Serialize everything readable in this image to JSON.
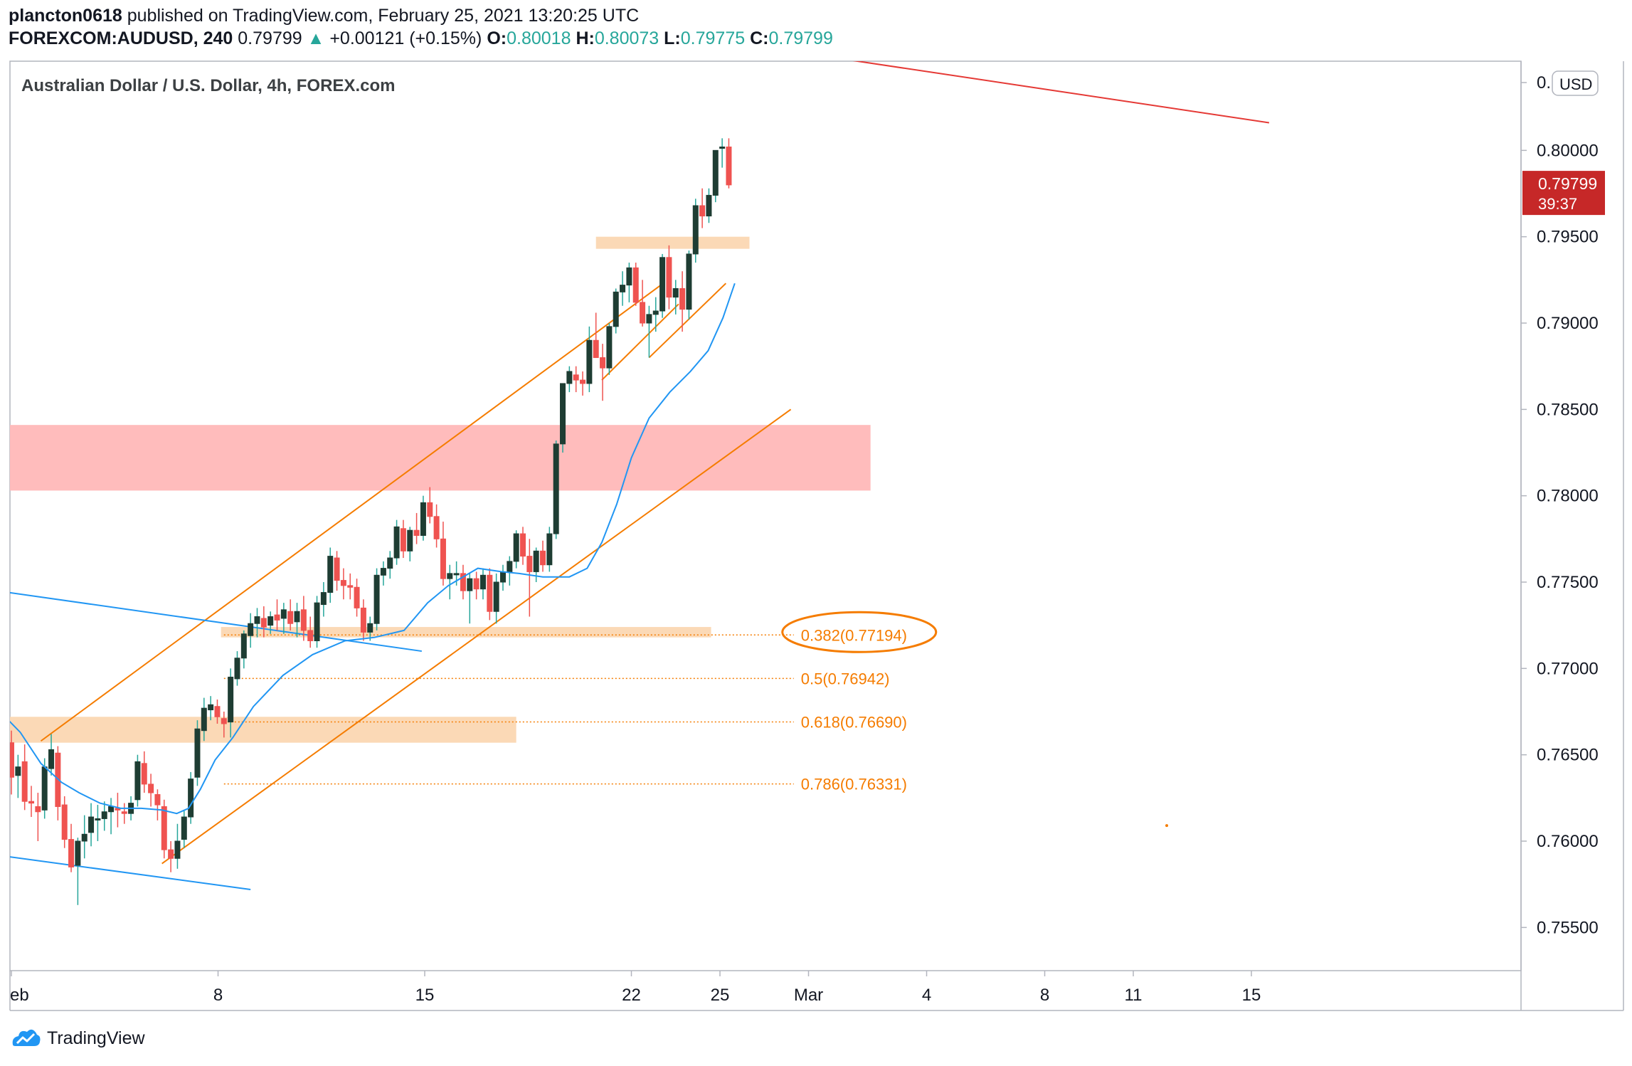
{
  "header": {
    "publisher": "plancton0618",
    "published_line": "published on TradingView.com, February 25, 2021 13:20:25 UTC",
    "symbol": "FOREXCOM:AUDUSD, 240",
    "last_price": "0.79799",
    "change_arrow": "▲",
    "change": "+0.00121 (+0.15%)",
    "open_label": "O:",
    "open": "0.80018",
    "high_label": "H:",
    "high": "0.80073",
    "low_label": "L:",
    "low": "0.79775",
    "close_label": "C:",
    "close": "0.79799"
  },
  "colors": {
    "up": "#26a69a",
    "down": "#ef5350",
    "candle_body": "#1e3d33",
    "orange": "#f57c00",
    "ma_line": "#2196f3",
    "resistance_zone": "#ffbcbc",
    "support_zone": "#fbd9b6",
    "price_label_bg": "#c62828"
  },
  "footer": {
    "brand": "TradingView"
  },
  "chart_data": {
    "type": "candlestick",
    "title": "Australian Dollar / U.S. Dollar, 4h, FOREX.com",
    "currency_label": "USD",
    "y_range": [
      0.7525,
      0.805
    ],
    "y_ticks": [
      "0.75500",
      "0.76000",
      "0.76500",
      "0.77000",
      "0.77500",
      "0.78000",
      "0.78500",
      "0.79000",
      "0.79500",
      "0.80000"
    ],
    "y_tick_partial": "0.",
    "x_ticks": [
      {
        "label": "eb",
        "day": 1
      },
      {
        "label": "8",
        "day": 8
      },
      {
        "label": "15",
        "day": 15
      },
      {
        "label": "22",
        "day": 22
      },
      {
        "label": "25",
        "day": 25
      },
      {
        "label": "Mar",
        "day": 28
      },
      {
        "label": "4",
        "day": 32
      },
      {
        "label": "8",
        "day": 36
      },
      {
        "label": "11",
        "day": 39
      },
      {
        "label": "15",
        "day": 43
      }
    ],
    "current_price": {
      "value": "0.79799",
      "countdown": "39:37"
    },
    "fibonacci": [
      {
        "level": "0.382",
        "price": 0.77194,
        "label": "0.382(0.77194)",
        "highlighted": true
      },
      {
        "level": "0.5",
        "price": 0.76942,
        "label": "0.5(0.76942)"
      },
      {
        "level": "0.618",
        "price": 0.7669,
        "label": "0.618(0.76690)"
      },
      {
        "level": "0.786",
        "price": 0.76331,
        "label": "0.786(0.76331)"
      }
    ],
    "zones": [
      {
        "name": "resistance",
        "from_day": 0.9,
        "to_day": 30.1,
        "low": 0.7803,
        "high": 0.7841
      },
      {
        "name": "support-low",
        "from_day": 0.9,
        "to_day": 18.1,
        "low": 0.7657,
        "high": 0.7672
      },
      {
        "name": "support-mid",
        "from_day": 8.1,
        "to_day": 24.7,
        "low": 0.7718,
        "high": 0.7724
      },
      {
        "name": "breakout",
        "from_day": 20.8,
        "to_day": 26.0,
        "low": 0.7943,
        "high": 0.795
      }
    ],
    "trendlines": [
      {
        "name": "long-term-resistance",
        "color": "red",
        "points": [
          [
            8.8,
            0.8105
          ],
          [
            43.6,
            0.8016
          ]
        ]
      },
      {
        "name": "channel-upper",
        "color": "orange",
        "points": [
          [
            2.0,
            0.7658
          ],
          [
            23.0,
            0.7922
          ]
        ]
      },
      {
        "name": "channel-lower",
        "color": "orange",
        "points": [
          [
            6.1,
            0.7587
          ],
          [
            27.4,
            0.785
          ]
        ]
      },
      {
        "name": "inner-channel-upper",
        "color": "orange",
        "points": [
          [
            21.0,
            0.7867
          ],
          [
            23.6,
            0.7911
          ]
        ]
      },
      {
        "name": "inner-channel-lower",
        "color": "orange",
        "points": [
          [
            22.6,
            0.788
          ],
          [
            25.2,
            0.7923
          ]
        ]
      },
      {
        "name": "descending-upper",
        "color": "blue",
        "points": [
          [
            0.9,
            0.7744
          ],
          [
            14.9,
            0.771
          ]
        ]
      },
      {
        "name": "descending-lower",
        "color": "blue",
        "points": [
          [
            0.9,
            0.7591
          ],
          [
            9.1,
            0.7572
          ]
        ]
      }
    ],
    "candles": [
      [
        0.7657,
        0.7664,
        0.7627,
        0.7637
      ],
      [
        0.7638,
        0.765,
        0.7625,
        0.7643
      ],
      [
        0.7646,
        0.7656,
        0.7618,
        0.7623
      ],
      [
        0.7623,
        0.7632,
        0.7614,
        0.7622
      ],
      [
        0.762,
        0.7628,
        0.76,
        0.7617
      ],
      [
        0.7618,
        0.7648,
        0.7613,
        0.7643
      ],
      [
        0.7642,
        0.7662,
        0.7638,
        0.7653
      ],
      [
        0.7651,
        0.7655,
        0.7612,
        0.762
      ],
      [
        0.7621,
        0.7626,
        0.7596,
        0.7601
      ],
      [
        0.7601,
        0.761,
        0.7582,
        0.7585
      ],
      [
        0.7586,
        0.7602,
        0.7563,
        0.76
      ],
      [
        0.76,
        0.7615,
        0.759,
        0.7604
      ],
      [
        0.7605,
        0.7622,
        0.7597,
        0.7614
      ],
      [
        0.7613,
        0.7621,
        0.76,
        0.7613
      ],
      [
        0.7613,
        0.7623,
        0.7606,
        0.7617
      ],
      [
        0.7617,
        0.7625,
        0.7604,
        0.762
      ],
      [
        0.7619,
        0.7628,
        0.7608,
        0.7618
      ],
      [
        0.7617,
        0.7622,
        0.761,
        0.7616
      ],
      [
        0.7616,
        0.7626,
        0.7612,
        0.7622
      ],
      [
        0.7624,
        0.765,
        0.762,
        0.7646
      ],
      [
        0.7645,
        0.7652,
        0.7628,
        0.7633
      ],
      [
        0.7633,
        0.7639,
        0.762,
        0.7628
      ],
      [
        0.7627,
        0.763,
        0.7612,
        0.7621
      ],
      [
        0.762,
        0.7624,
        0.759,
        0.7595
      ],
      [
        0.7595,
        0.76,
        0.7582,
        0.759
      ],
      [
        0.759,
        0.761,
        0.7584,
        0.76
      ],
      [
        0.7601,
        0.7618,
        0.7596,
        0.7614
      ],
      [
        0.7614,
        0.764,
        0.761,
        0.7636
      ],
      [
        0.7637,
        0.767,
        0.7632,
        0.7665
      ],
      [
        0.7664,
        0.7683,
        0.7658,
        0.7677
      ],
      [
        0.7676,
        0.7684,
        0.767,
        0.7679
      ],
      [
        0.7678,
        0.7682,
        0.7668,
        0.7672
      ],
      [
        0.7671,
        0.7675,
        0.766,
        0.7668
      ],
      [
        0.7669,
        0.77,
        0.766,
        0.7695
      ],
      [
        0.7694,
        0.771,
        0.769,
        0.7706
      ],
      [
        0.7706,
        0.7722,
        0.77,
        0.772
      ],
      [
        0.7719,
        0.7732,
        0.7712,
        0.7726
      ],
      [
        0.7726,
        0.7735,
        0.7718,
        0.773
      ],
      [
        0.7729,
        0.7736,
        0.7718,
        0.7724
      ],
      [
        0.7725,
        0.7733,
        0.772,
        0.773
      ],
      [
        0.7731,
        0.774,
        0.7722,
        0.7728
      ],
      [
        0.7729,
        0.7738,
        0.772,
        0.7734
      ],
      [
        0.7733,
        0.774,
        0.7722,
        0.7726
      ],
      [
        0.7727,
        0.7738,
        0.7718,
        0.7733
      ],
      [
        0.7734,
        0.7742,
        0.7716,
        0.7722
      ],
      [
        0.7722,
        0.773,
        0.7712,
        0.7716
      ],
      [
        0.7716,
        0.7742,
        0.7712,
        0.7738
      ],
      [
        0.7737,
        0.775,
        0.773,
        0.7744
      ],
      [
        0.7744,
        0.777,
        0.7738,
        0.7765
      ],
      [
        0.7764,
        0.7768,
        0.7745,
        0.7751
      ],
      [
        0.7751,
        0.7758,
        0.774,
        0.7748
      ],
      [
        0.7748,
        0.7755,
        0.774,
        0.7747
      ],
      [
        0.7747,
        0.7752,
        0.773,
        0.7735
      ],
      [
        0.7735,
        0.774,
        0.7716,
        0.7721
      ],
      [
        0.7721,
        0.773,
        0.7716,
        0.7726
      ],
      [
        0.7726,
        0.7758,
        0.7722,
        0.7754
      ],
      [
        0.7754,
        0.7762,
        0.7748,
        0.7758
      ],
      [
        0.7758,
        0.7768,
        0.7752,
        0.7764
      ],
      [
        0.7764,
        0.7786,
        0.776,
        0.7782
      ],
      [
        0.7781,
        0.7786,
        0.7764,
        0.7768
      ],
      [
        0.7768,
        0.7782,
        0.7762,
        0.778
      ],
      [
        0.778,
        0.779,
        0.7772,
        0.7777
      ],
      [
        0.7777,
        0.78,
        0.7774,
        0.7796
      ],
      [
        0.7796,
        0.7805,
        0.7784,
        0.7788
      ],
      [
        0.7788,
        0.7795,
        0.777,
        0.7775
      ],
      [
        0.7775,
        0.7785,
        0.7748,
        0.7752
      ],
      [
        0.7752,
        0.776,
        0.774,
        0.7755
      ],
      [
        0.7755,
        0.7762,
        0.7748,
        0.7755
      ],
      [
        0.7755,
        0.776,
        0.774,
        0.7745
      ],
      [
        0.7745,
        0.7755,
        0.7726,
        0.7752
      ],
      [
        0.7752,
        0.7756,
        0.774,
        0.7746
      ],
      [
        0.7746,
        0.7758,
        0.774,
        0.7754
      ],
      [
        0.7754,
        0.7758,
        0.7728,
        0.7733
      ],
      [
        0.7733,
        0.7755,
        0.7726,
        0.775
      ],
      [
        0.775,
        0.776,
        0.7745,
        0.7756
      ],
      [
        0.7756,
        0.7765,
        0.7748,
        0.7762
      ],
      [
        0.7762,
        0.778,
        0.7758,
        0.7778
      ],
      [
        0.7778,
        0.7782,
        0.776,
        0.7765
      ],
      [
        0.7765,
        0.7775,
        0.773,
        0.7756
      ],
      [
        0.7756,
        0.777,
        0.775,
        0.7768
      ],
      [
        0.7768,
        0.7774,
        0.7756,
        0.776
      ],
      [
        0.776,
        0.7782,
        0.7756,
        0.7778
      ],
      [
        0.7778,
        0.7832,
        0.7775,
        0.783
      ],
      [
        0.783,
        0.786,
        0.7825,
        0.7865
      ],
      [
        0.7865,
        0.7875,
        0.786,
        0.7872
      ],
      [
        0.787,
        0.7875,
        0.786,
        0.7867
      ],
      [
        0.7867,
        0.7872,
        0.7858,
        0.7865
      ],
      [
        0.7865,
        0.7898,
        0.786,
        0.789
      ],
      [
        0.789,
        0.7906,
        0.788,
        0.788
      ],
      [
        0.788,
        0.7888,
        0.7855,
        0.7874
      ],
      [
        0.7874,
        0.79,
        0.787,
        0.7898
      ],
      [
        0.7898,
        0.792,
        0.7894,
        0.7918
      ],
      [
        0.7918,
        0.793,
        0.791,
        0.7922
      ],
      [
        0.7922,
        0.7935,
        0.7912,
        0.7932
      ],
      [
        0.7932,
        0.7935,
        0.791,
        0.7912
      ],
      [
        0.7912,
        0.7925,
        0.7898,
        0.79
      ],
      [
        0.79,
        0.791,
        0.788,
        0.7905
      ],
      [
        0.7905,
        0.7915,
        0.7895,
        0.7907
      ],
      [
        0.7907,
        0.794,
        0.7903,
        0.7938
      ],
      [
        0.7938,
        0.7945,
        0.7908,
        0.7915
      ],
      [
        0.7915,
        0.7925,
        0.7905,
        0.792
      ],
      [
        0.792,
        0.793,
        0.7895,
        0.7908
      ],
      [
        0.7908,
        0.7942,
        0.7902,
        0.794
      ],
      [
        0.794,
        0.7972,
        0.7935,
        0.7968
      ],
      [
        0.7968,
        0.7978,
        0.7955,
        0.7962
      ],
      [
        0.7962,
        0.7978,
        0.7958,
        0.7974
      ],
      [
        0.7974,
        0.7998,
        0.797,
        0.8
      ],
      [
        0.8002,
        0.8007,
        0.799,
        0.8002
      ],
      [
        0.8002,
        0.8007,
        0.7978,
        0.798
      ]
    ],
    "moving_average": [
      [
        0.9,
        0.767
      ],
      [
        1.3,
        0.7663
      ],
      [
        2.0,
        0.7645
      ],
      [
        2.7,
        0.7634
      ],
      [
        3.3,
        0.7628
      ],
      [
        4.0,
        0.7622
      ],
      [
        4.7,
        0.7619
      ],
      [
        5.4,
        0.7619
      ],
      [
        6.1,
        0.7618
      ],
      [
        6.6,
        0.7616
      ],
      [
        7.0,
        0.7619
      ],
      [
        7.4,
        0.763
      ],
      [
        7.9,
        0.7647
      ],
      [
        8.5,
        0.766
      ],
      [
        9.2,
        0.7678
      ],
      [
        10.2,
        0.7696
      ],
      [
        11.2,
        0.7708
      ],
      [
        12.3,
        0.7716
      ],
      [
        13.3,
        0.7718
      ],
      [
        14.3,
        0.7722
      ],
      [
        15.1,
        0.7738
      ],
      [
        15.8,
        0.7748
      ],
      [
        16.8,
        0.7758
      ],
      [
        17.6,
        0.7756
      ],
      [
        18.2,
        0.7755
      ],
      [
        19.0,
        0.7753
      ],
      [
        19.9,
        0.7753
      ],
      [
        20.5,
        0.7758
      ],
      [
        21.0,
        0.7773
      ],
      [
        21.5,
        0.7795
      ],
      [
        22.0,
        0.7822
      ],
      [
        22.6,
        0.7845
      ],
      [
        23.3,
        0.786
      ],
      [
        24.0,
        0.7872
      ],
      [
        24.6,
        0.7884
      ],
      [
        25.1,
        0.7903
      ],
      [
        25.5,
        0.7923
      ]
    ]
  }
}
